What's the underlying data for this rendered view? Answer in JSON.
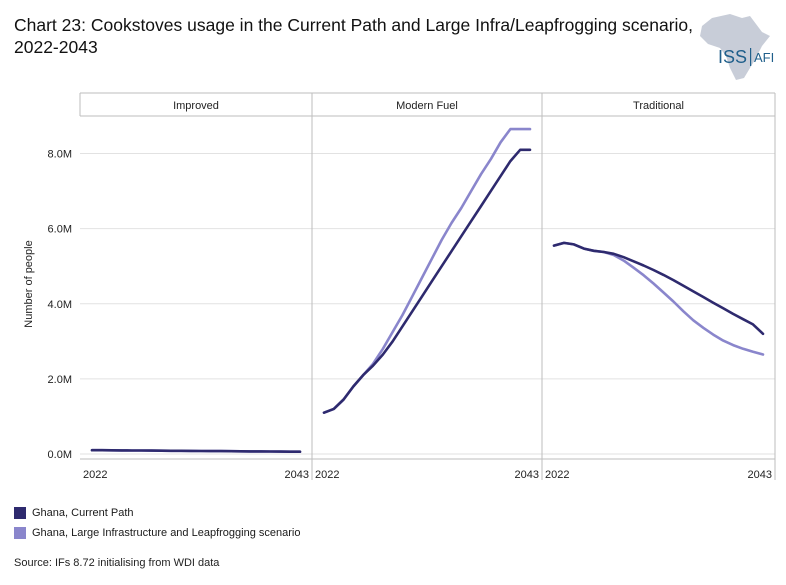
{
  "title": "Chart 23: Cookstoves usage in the Current Path and Large Infra/Leapfrogging scenario, 2022-2043",
  "logo": {
    "text_main": "ISS",
    "text_sub": "AFI",
    "map_color": "#c8cdd8",
    "text_color": "#1f5f8b"
  },
  "source": "Source: IFs 8.72 initialising from WDI data",
  "colors": {
    "current_path": "#2e2a6e",
    "leapfrog": "#8a86cc",
    "grid": "#e2e2e2",
    "frame": "#bdbdbd"
  },
  "chart_data": {
    "type": "line",
    "title": "Chart 23: Cookstoves usage in the Current Path and Large Infra/Leapfrogging scenario, 2022-2043",
    "ylabel": "Number of people",
    "xlabel": "",
    "ylim": [
      0,
      9000000
    ],
    "y_ticks": [
      0,
      2000000,
      4000000,
      6000000,
      8000000
    ],
    "y_tick_labels": [
      "0.0M",
      "2.0M",
      "4.0M",
      "6.0M",
      "8.0M"
    ],
    "x_tick_labels": [
      "2022",
      "2043"
    ],
    "grid": true,
    "legend_position": "bottom-left",
    "legend": [
      "Ghana, Current Path",
      "Ghana, Large Infrastructure and Leapfrogging scenario"
    ],
    "x": [
      2022,
      2023,
      2024,
      2025,
      2026,
      2027,
      2028,
      2029,
      2030,
      2031,
      2032,
      2033,
      2034,
      2035,
      2036,
      2037,
      2038,
      2039,
      2040,
      2041,
      2042,
      2043
    ],
    "panels": [
      {
        "name": "Improved",
        "series": [
          {
            "name": "Ghana, Current Path",
            "values": [
              100000,
              100000,
              98000,
              96000,
              94000,
              92000,
              90000,
              88000,
              86000,
              84000,
              82000,
              80000,
              78000,
              76000,
              74000,
              72000,
              70000,
              68000,
              66000,
              64000,
              62000,
              60000
            ]
          },
          {
            "name": "Ghana, Large Infrastructure and Leapfrogging scenario",
            "values": [
              100000,
              100000,
              98000,
              96000,
              94000,
              92000,
              90000,
              88000,
              86000,
              84000,
              82000,
              80000,
              78000,
              76000,
              74000,
              72000,
              70000,
              68000,
              66000,
              64000,
              62000,
              60000
            ]
          }
        ]
      },
      {
        "name": "Modern Fuel",
        "series": [
          {
            "name": "Ghana, Current Path",
            "values": [
              1100000,
              1200000,
              1450000,
              1800000,
              2100000,
              2350000,
              2650000,
              3000000,
              3400000,
              3800000,
              4200000,
              4600000,
              5000000,
              5400000,
              5800000,
              6200000,
              6600000,
              7000000,
              7400000,
              7800000,
              8100000,
              8100000
            ]
          },
          {
            "name": "Ghana, Large Infrastructure and Leapfrogging scenario",
            "values": [
              1100000,
              1200000,
              1450000,
              1800000,
              2100000,
              2400000,
              2800000,
              3250000,
              3700000,
              4200000,
              4700000,
              5200000,
              5700000,
              6150000,
              6550000,
              7000000,
              7450000,
              7850000,
              8300000,
              8650000,
              8650000,
              8650000
            ]
          }
        ]
      },
      {
        "name": "Traditional",
        "series": [
          {
            "name": "Ghana, Current Path",
            "values": [
              5550000,
              5620000,
              5580000,
              5470000,
              5410000,
              5380000,
              5330000,
              5240000,
              5130000,
              5020000,
              4900000,
              4770000,
              4630000,
              4480000,
              4330000,
              4180000,
              4030000,
              3880000,
              3730000,
              3590000,
              3450000,
              3200000
            ]
          },
          {
            "name": "Ghana, Large Infrastructure and Leapfrogging scenario",
            "values": [
              5550000,
              5620000,
              5580000,
              5470000,
              5410000,
              5380000,
              5300000,
              5150000,
              4960000,
              4760000,
              4540000,
              4300000,
              4060000,
              3800000,
              3560000,
              3360000,
              3180000,
              3020000,
              2900000,
              2800000,
              2720000,
              2650000
            ]
          }
        ]
      }
    ]
  }
}
